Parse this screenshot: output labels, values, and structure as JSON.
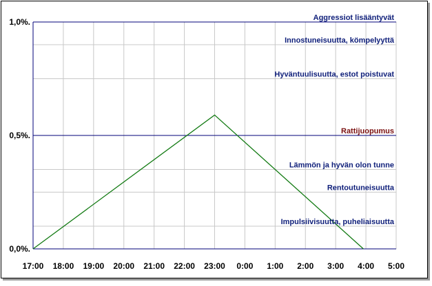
{
  "chart_data": {
    "type": "line",
    "title": "",
    "xlabel": "",
    "ylabel": "",
    "x_ticks": [
      "17:00",
      "18:00",
      "19:00",
      "20:00",
      "21:00",
      "22:00",
      "23:00",
      "0:00",
      "1:00",
      "2:00",
      "3:00",
      "4:00",
      "5:00"
    ],
    "x_range_hours": [
      17,
      29
    ],
    "y_ticks": [
      "0,0%.",
      "0,5%.",
      "1,0%."
    ],
    "ylim": [
      0,
      1.0
    ],
    "grid": true,
    "series": [
      {
        "x": [
          "17:00",
          "23:00",
          "3:55"
        ],
        "y": [
          0.0,
          0.59,
          0.0
        ]
      }
    ],
    "reference_lines": [
      {
        "y": 1.0,
        "label": "Aggressiot lisääntyvät",
        "color": "#0f1f7a",
        "line_color": "#00007a"
      },
      {
        "y": 0.9,
        "label": "Innostuneisuutta, kömpelyyttä",
        "color": "#0f1f7a",
        "line_color": "#c8c8c8"
      },
      {
        "y": 0.75,
        "label": "Hyväntuulisuutta, estot poistuvat",
        "color": "#0f1f7a",
        "line_color": "#c8c8c8"
      },
      {
        "y": 0.5,
        "label": "Rattijuopumus",
        "color": "#7a1010",
        "line_color": "#00007a"
      },
      {
        "y": 0.35,
        "label": "Lämmön ja hyvän olon tunne",
        "color": "#0f1f7a",
        "line_color": "#c8c8c8"
      },
      {
        "y": 0.25,
        "label": "Rentoutuneisuutta",
        "color": "#0f1f7a",
        "line_color": "#c8c8c8"
      },
      {
        "y": 0.1,
        "label": "Impulsiivisuutta, puheliaisuutta",
        "color": "#0f1f7a",
        "line_color": "#c8c8c8"
      }
    ],
    "colors": {
      "line": "#127a12",
      "grid": "#c8c8c8",
      "axis": "#00007a"
    }
  }
}
